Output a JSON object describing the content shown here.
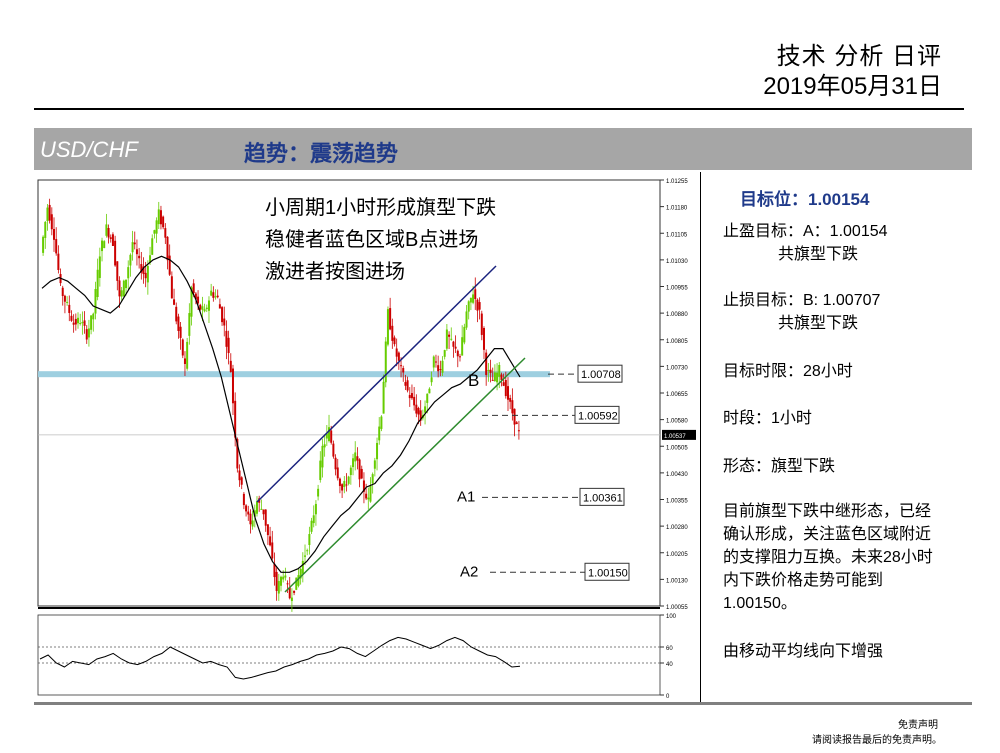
{
  "header": {
    "title": "技术 分析 日评",
    "date": "2019年05月31日"
  },
  "banner": {
    "pair": "USD/CHF",
    "trend": "趋势：震荡趋势"
  },
  "annotation": [
    "小周期1小时形成旗型下跌",
    "稳健者蓝色区域B点进场",
    "激进者按图进场"
  ],
  "sidebar": {
    "target": "目标位：1.00154",
    "take_profit": "止盈目标：A：1.00154",
    "take_profit_note": "共旗型下跌",
    "stop_loss": "止损目标：B: 1.00707",
    "stop_loss_note": "共旗型下跌",
    "time_limit": "目标时限：28小时",
    "timeframe": "时段：1小时",
    "pattern": "形态：旗型下跌",
    "description": [
      "目前旗型下跌中继形态，已经",
      "确认形成，关注蓝色区域附近",
      "的支撑阻力互换。未来28小时",
      "内下跌价格走势可能到",
      "1.00150。"
    ],
    "note": "由移动平均线向下增强"
  },
  "footer": {
    "disclaimer_title": "免责声明",
    "disclaimer_text": "请阅读报告最后的免责声明。"
  },
  "colors": {
    "up_candle": "#66cc00",
    "down_candle": "#cc0000",
    "channel_upper": "#1a237e",
    "channel_lower": "#2e8b2e",
    "zone": "#9ecfe0",
    "banner": "#a6a6a6",
    "accent": "#1f3a8a"
  },
  "chart_data": {
    "type": "candlestick",
    "ylim": [
      1.00055,
      1.01255
    ],
    "yticks": [
      1.00055,
      1.0013,
      1.00205,
      1.0028,
      1.00355,
      1.0043,
      1.00505,
      1.0058,
      1.00655,
      1.0073,
      1.00805,
      1.0088,
      1.00955,
      1.0103,
      1.01105,
      1.0118,
      1.01255
    ],
    "current_price": 1.00537,
    "levels": [
      {
        "label": "",
        "value": 1.00708
      },
      {
        "label": "",
        "value": 1.00592
      },
      {
        "label": "A1",
        "value": 1.00361
      },
      {
        "label": "A2",
        "value": 1.0015
      }
    ],
    "marker_b": "B",
    "price_path": [
      1.0105,
      1.0118,
      1.011,
      1.0095,
      1.009,
      1.0085,
      1.0086,
      1.0082,
      1.0088,
      1.0105,
      1.0112,
      1.0108,
      1.0092,
      1.0098,
      1.0108,
      1.0102,
      1.0098,
      1.0109,
      1.0116,
      1.011,
      1.0093,
      1.0083,
      1.0073,
      1.0095,
      1.009,
      1.0088,
      1.0094,
      1.0092,
      1.0084,
      1.0072,
      1.0045,
      1.0035,
      1.0028,
      1.0035,
      1.0032,
      1.0022,
      1.001,
      1.0015,
      1.0008,
      1.0012,
      1.0018,
      1.0025,
      1.0035,
      1.005,
      1.0055,
      1.0045,
      1.0038,
      1.0042,
      1.0048,
      1.004,
      1.0035,
      1.0048,
      1.006,
      1.0088,
      1.0078,
      1.0072,
      1.0066,
      1.0062,
      1.0058,
      1.0064,
      1.0075,
      1.0072,
      1.0082,
      1.0078,
      1.0076,
      1.0088,
      1.0094,
      1.0088,
      1.0072,
      1.0069,
      1.0072,
      1.0066,
      1.006,
      1.0054
    ],
    "ma_path": [
      1.0095,
      1.0097,
      1.0098,
      1.0097,
      1.0095,
      1.0093,
      1.009,
      1.0089,
      1.0088,
      1.009,
      1.0094,
      1.0098,
      1.0101,
      1.0103,
      1.0104,
      1.0103,
      1.0101,
      1.0097,
      1.0092,
      1.0085,
      1.0078,
      1.007,
      1.006,
      1.005,
      1.004,
      1.003,
      1.0023,
      1.0018,
      1.0015,
      1.0015,
      1.0016,
      1.0018,
      1.0021,
      1.0025,
      1.0028,
      1.0031,
      1.0033,
      1.0036,
      1.0039,
      1.004,
      1.0043,
      1.0045,
      1.0048,
      1.0052,
      1.0057,
      1.006,
      1.0063,
      1.0065,
      1.0067,
      1.0068,
      1.007,
      1.0072,
      1.0075,
      1.0078,
      1.0078,
      1.0074,
      1.007
    ],
    "oscillator_yticks": [
      0,
      40,
      60,
      100
    ],
    "oscillator_path": [
      45,
      50,
      40,
      35,
      42,
      40,
      38,
      45,
      48,
      52,
      45,
      40,
      38,
      42,
      48,
      52,
      60,
      55,
      50,
      45,
      40,
      42,
      38,
      35,
      22,
      20,
      22,
      25,
      28,
      30,
      35,
      38,
      42,
      45,
      50,
      52,
      55,
      60,
      58,
      52,
      48,
      55,
      62,
      68,
      72,
      70,
      66,
      62,
      58,
      62,
      68,
      72,
      68,
      60,
      55,
      50,
      48,
      42,
      35,
      36
    ]
  }
}
